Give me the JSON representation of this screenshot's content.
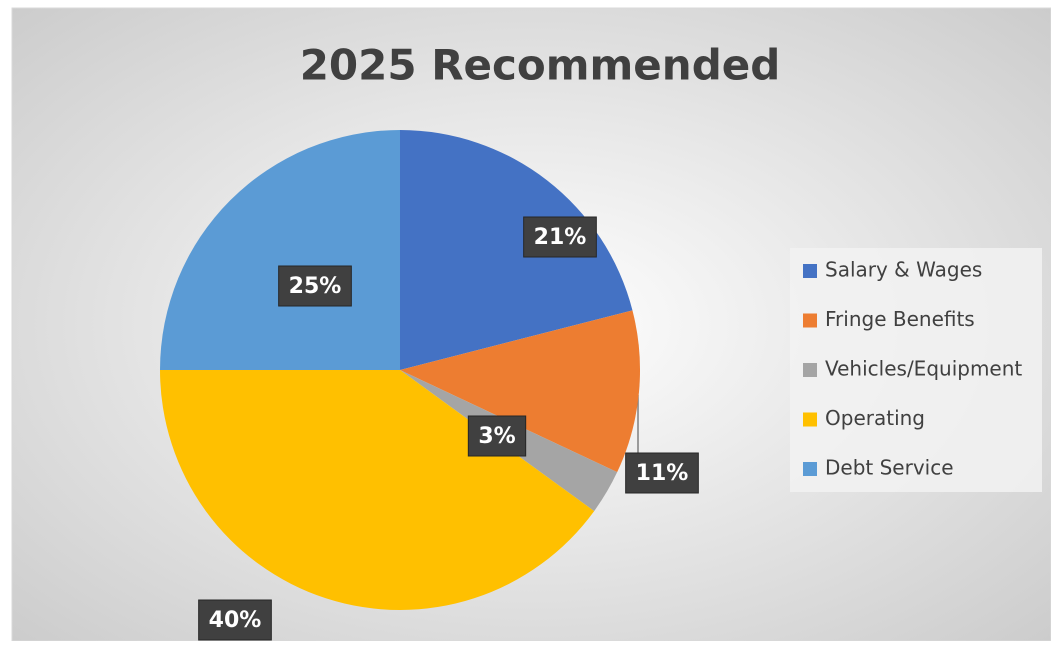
{
  "chart_data": {
    "type": "pie",
    "title": "2025 Recommended",
    "categories": [
      "Salary & Wages",
      "Fringe Benefits",
      "Vehicles/Equipment",
      "Operating",
      "Debt Service"
    ],
    "values": [
      21,
      11,
      3,
      40,
      25
    ],
    "value_labels": [
      "21%",
      "11%",
      "3%",
      "40%",
      "25%"
    ],
    "colors": [
      "#4472c4",
      "#ed7d31",
      "#a5a5a5",
      "#ffc000",
      "#5b9bd5"
    ],
    "legend": "right"
  }
}
